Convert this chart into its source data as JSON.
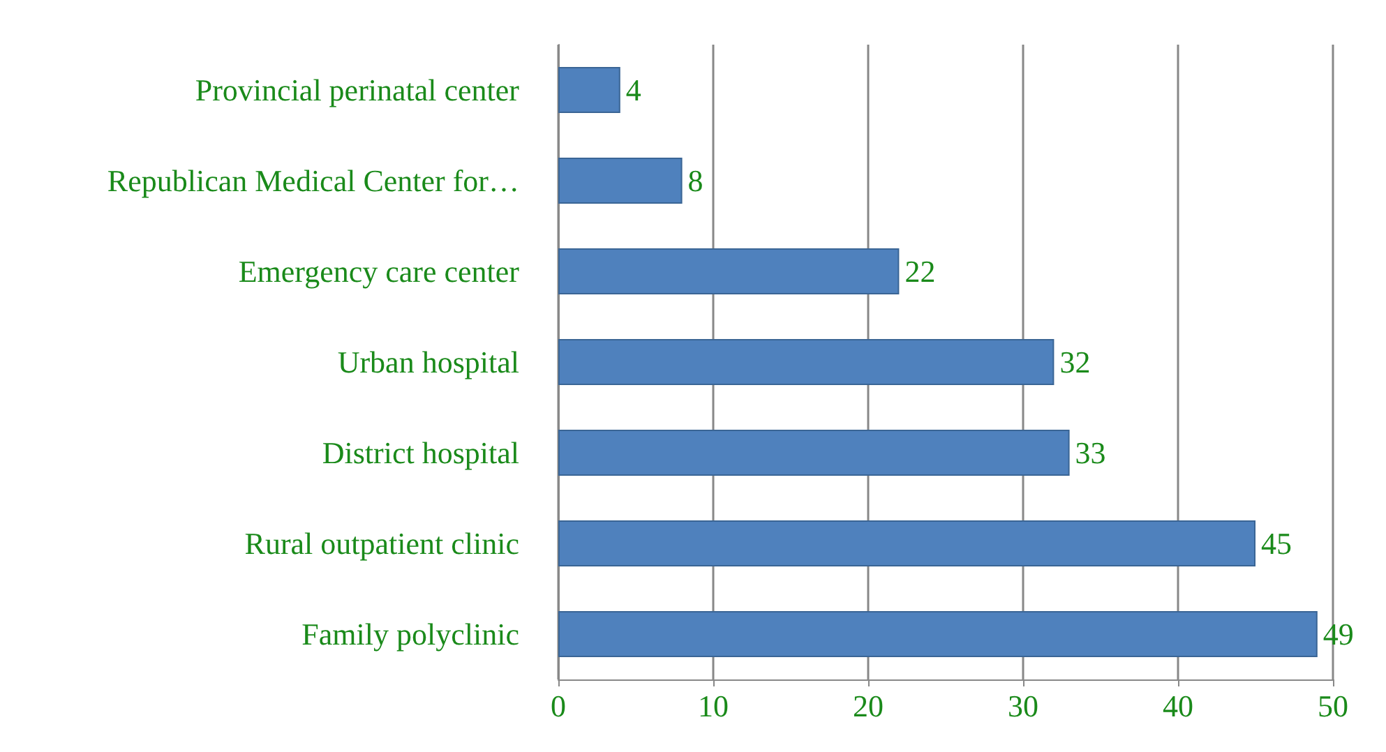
{
  "chart_data": {
    "type": "bar",
    "orientation": "horizontal",
    "categories": [
      "Provincial perinatal center",
      "Republican Medical Center for…",
      "Emergency care center",
      "Urban hospital",
      "District hospital",
      "Rural outpatient clinic",
      "Family polyclinic"
    ],
    "values": [
      4,
      8,
      22,
      32,
      33,
      45,
      49
    ],
    "color": "#4f81bd",
    "xlim": [
      0,
      50
    ],
    "xticks": [
      0,
      10,
      20,
      30,
      40,
      50
    ],
    "grid": "x",
    "data_labels": true
  }
}
